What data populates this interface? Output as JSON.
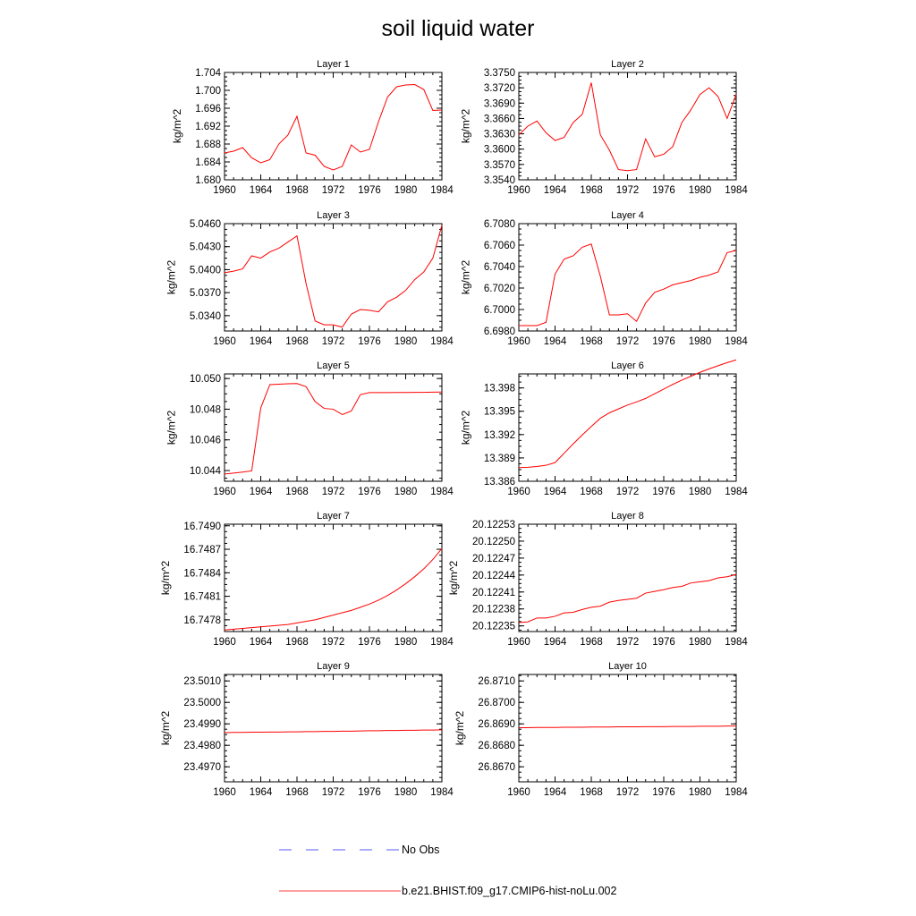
{
  "title": "soil liquid water",
  "colors": {
    "model_line": "#ff0000",
    "obs_line": "#5a5aff",
    "axis": "#000000"
  },
  "legend": {
    "obs_label": "No Obs",
    "model_label": "b.e21.BHIST.f09_g17.CMIP6-hist-noLu.002"
  },
  "chart_data": [
    {
      "type": "line",
      "title": "Layer 1",
      "ylabel": "kg/m^2",
      "x": [
        1960,
        1961,
        1962,
        1963,
        1964,
        1965,
        1966,
        1967,
        1968,
        1969,
        1970,
        1971,
        1972,
        1973,
        1974,
        1975,
        1976,
        1977,
        1978,
        1979,
        1980,
        1981,
        1982,
        1983,
        1984
      ],
      "xticks": [
        "1960",
        "1964",
        "1968",
        "1972",
        "1976",
        "1980",
        "1984"
      ],
      "ylim": [
        1.68,
        1.704
      ],
      "yticks": [
        "1.680",
        "1.684",
        "1.688",
        "1.692",
        "1.696",
        "1.700",
        "1.704"
      ],
      "series": [
        {
          "name": "b.e21.BHIST.f09_g17.CMIP6-hist-noLu.002",
          "values": [
            1.686,
            1.6864,
            1.6872,
            1.6849,
            1.6838,
            1.6845,
            1.688,
            1.69,
            1.6942,
            1.686,
            1.6855,
            1.683,
            1.6822,
            1.683,
            1.6878,
            1.6862,
            1.6868,
            1.693,
            1.6985,
            1.7008,
            1.7012,
            1.7013,
            1.7002,
            1.6955,
            1.6956
          ]
        }
      ]
    },
    {
      "type": "line",
      "title": "Layer 2",
      "ylabel": "kg/m^2",
      "x": [
        1960,
        1961,
        1962,
        1963,
        1964,
        1965,
        1966,
        1967,
        1968,
        1969,
        1970,
        1971,
        1972,
        1973,
        1974,
        1975,
        1976,
        1977,
        1978,
        1979,
        1980,
        1981,
        1982,
        1983,
        1984
      ],
      "xticks": [
        "1960",
        "1964",
        "1968",
        "1972",
        "1976",
        "1980",
        "1984"
      ],
      "ylim": [
        3.354,
        3.375
      ],
      "yticks": [
        "3.3540",
        "3.3570",
        "3.3600",
        "3.3630",
        "3.3660",
        "3.3690",
        "3.3720",
        "3.3750"
      ],
      "series": [
        {
          "name": "b.e21.BHIST.f09_g17.CMIP6-hist-noLu.002",
          "values": [
            3.3628,
            3.3645,
            3.3655,
            3.3632,
            3.3617,
            3.3623,
            3.3652,
            3.3668,
            3.373,
            3.3628,
            3.3598,
            3.356,
            3.3558,
            3.356,
            3.362,
            3.3585,
            3.359,
            3.3605,
            3.3652,
            3.3677,
            3.3707,
            3.372,
            3.3703,
            3.366,
            3.3707
          ]
        }
      ]
    },
    {
      "type": "line",
      "title": "Layer 3",
      "ylabel": "kg/m^2",
      "x": [
        1960,
        1961,
        1962,
        1963,
        1964,
        1965,
        1966,
        1967,
        1968,
        1969,
        1970,
        1971,
        1972,
        1973,
        1974,
        1975,
        1976,
        1977,
        1978,
        1979,
        1980,
        1981,
        1982,
        1983,
        1984
      ],
      "xticks": [
        "1960",
        "1964",
        "1968",
        "1972",
        "1976",
        "1980",
        "1984"
      ],
      "ylim": [
        5.032,
        5.046
      ],
      "yticks": [
        "5.0340",
        "5.0370",
        "5.0400",
        "5.0430",
        "5.0460"
      ],
      "series": [
        {
          "name": "b.e21.BHIST.f09_g17.CMIP6-hist-noLu.002",
          "values": [
            5.0396,
            5.0398,
            5.0401,
            5.0418,
            5.0415,
            5.0423,
            5.0428,
            5.0436,
            5.0444,
            5.0382,
            5.0333,
            5.0328,
            5.0328,
            5.0325,
            5.0342,
            5.0348,
            5.0347,
            5.0345,
            5.0358,
            5.0364,
            5.0373,
            5.0387,
            5.0397,
            5.0415,
            5.0458
          ]
        }
      ]
    },
    {
      "type": "line",
      "title": "Layer 4",
      "ylabel": "kg/m^2",
      "x": [
        1960,
        1961,
        1962,
        1963,
        1964,
        1965,
        1966,
        1967,
        1968,
        1969,
        1970,
        1971,
        1972,
        1973,
        1974,
        1975,
        1976,
        1977,
        1978,
        1979,
        1980,
        1981,
        1982,
        1983,
        1984
      ],
      "xticks": [
        "1960",
        "1964",
        "1968",
        "1972",
        "1976",
        "1980",
        "1984"
      ],
      "ylim": [
        6.698,
        6.708
      ],
      "yticks": [
        "6.6980",
        "6.7000",
        "6.7020",
        "6.7040",
        "6.7060",
        "6.7080"
      ],
      "series": [
        {
          "name": "b.e21.BHIST.f09_g17.CMIP6-hist-noLu.002",
          "values": [
            6.6985,
            6.6985,
            6.6985,
            6.6988,
            6.7033,
            6.7047,
            6.705,
            6.7058,
            6.7061,
            6.7031,
            6.6995,
            6.6995,
            6.6996,
            6.6989,
            6.7006,
            6.7016,
            6.7019,
            6.7023,
            6.7025,
            6.7027,
            6.703,
            6.7032,
            6.7035,
            6.7053,
            6.7055
          ]
        }
      ]
    },
    {
      "type": "line",
      "title": "Layer 5",
      "ylabel": "kg/m^2",
      "x": [
        1960,
        1961,
        1962,
        1963,
        1964,
        1965,
        1966,
        1967,
        1968,
        1969,
        1970,
        1971,
        1972,
        1973,
        1974,
        1975,
        1976,
        1977,
        1978,
        1979,
        1980,
        1981,
        1982,
        1983,
        1984
      ],
      "xticks": [
        "1960",
        "1964",
        "1968",
        "1972",
        "1976",
        "1980",
        "1984"
      ],
      "ylim": [
        10.0433,
        10.0503
      ],
      "yticks": [
        "10.044",
        "10.046",
        "10.048",
        "10.050"
      ],
      "series": [
        {
          "name": "b.e21.BHIST.f09_g17.CMIP6-hist-noLu.002",
          "values": [
            10.04377,
            10.04383,
            10.0439,
            10.04398,
            10.04808,
            10.0496,
            10.04963,
            10.04966,
            10.04967,
            10.04947,
            10.0485,
            10.04805,
            10.048,
            10.04765,
            10.04788,
            10.04895,
            10.04908,
            10.04908,
            10.04908,
            10.04909,
            10.04909,
            10.0491,
            10.0491,
            10.04911,
            10.04912
          ]
        }
      ]
    },
    {
      "type": "line",
      "title": "Layer 6",
      "ylabel": "kg/m^2",
      "x": [
        1960,
        1961,
        1962,
        1963,
        1964,
        1965,
        1966,
        1967,
        1968,
        1969,
        1970,
        1971,
        1972,
        1973,
        1974,
        1975,
        1976,
        1977,
        1978,
        1979,
        1980,
        1981,
        1982,
        1983,
        1984
      ],
      "xticks": [
        "1960",
        "1964",
        "1968",
        "1972",
        "1976",
        "1980",
        "1984"
      ],
      "ylim": [
        13.386,
        13.3998
      ],
      "yticks": [
        "13.386",
        "13.389",
        "13.392",
        "13.395",
        "13.398"
      ],
      "series": [
        {
          "name": "b.e21.BHIST.f09_g17.CMIP6-hist-noLu.002",
          "values": [
            13.38775,
            13.3878,
            13.3879,
            13.38805,
            13.3884,
            13.3896,
            13.3908,
            13.39195,
            13.39305,
            13.3941,
            13.3948,
            13.3953,
            13.3958,
            13.3962,
            13.39665,
            13.39725,
            13.39785,
            13.39845,
            13.399,
            13.3995,
            13.4,
            13.40045,
            13.40085,
            13.40125,
            13.4016
          ]
        }
      ]
    },
    {
      "type": "line",
      "title": "Layer 7",
      "ylabel": "kg/m^2",
      "x": [
        1960,
        1961,
        1962,
        1963,
        1964,
        1965,
        1966,
        1967,
        1968,
        1969,
        1970,
        1971,
        1972,
        1973,
        1974,
        1975,
        1976,
        1977,
        1978,
        1979,
        1980,
        1981,
        1982,
        1983,
        1984
      ],
      "xticks": [
        "1960",
        "1964",
        "1968",
        "1972",
        "1976",
        "1980",
        "1984"
      ],
      "ylim": [
        16.74765,
        16.74902
      ],
      "yticks": [
        "16.7478",
        "16.7481",
        "16.7484",
        "16.7487",
        "16.7490"
      ],
      "series": [
        {
          "name": "b.e21.BHIST.f09_g17.CMIP6-hist-noLu.002",
          "values": [
            16.74767,
            16.74768,
            16.74769,
            16.7477,
            16.74771,
            16.74772,
            16.74773,
            16.74774,
            16.74776,
            16.74778,
            16.7478,
            16.74783,
            16.74786,
            16.74789,
            16.74792,
            16.74796,
            16.748,
            16.74805,
            16.74811,
            16.74818,
            16.74826,
            16.74835,
            16.74845,
            16.74857,
            16.74871
          ]
        }
      ]
    },
    {
      "type": "line",
      "title": "Layer 8",
      "ylabel": "kg/m^2",
      "x": [
        1960,
        1961,
        1962,
        1963,
        1964,
        1965,
        1966,
        1967,
        1968,
        1969,
        1970,
        1971,
        1972,
        1973,
        1974,
        1975,
        1976,
        1977,
        1978,
        1979,
        1980,
        1981,
        1982,
        1983,
        1984
      ],
      "xticks": [
        "1960",
        "1964",
        "1968",
        "1972",
        "1976",
        "1980",
        "1984"
      ],
      "ylim": [
        20.12234,
        20.12253
      ],
      "yticks": [
        "20.12235",
        "20.12238",
        "20.12241",
        "20.12244",
        "20.12247",
        "20.12250",
        "20.12253"
      ],
      "series": [
        {
          "name": "b.e21.BHIST.f09_g17.CMIP6-hist-noLu.002",
          "values": [
            20.122356,
            20.122357,
            20.122364,
            20.122364,
            20.122367,
            20.122373,
            20.122374,
            20.122379,
            20.122383,
            20.122385,
            20.122392,
            20.122395,
            20.122397,
            20.122399,
            20.122408,
            20.122411,
            20.122414,
            20.122418,
            20.12242,
            20.122426,
            20.122428,
            20.12243,
            20.122435,
            20.122437,
            20.122441
          ]
        }
      ]
    },
    {
      "type": "line",
      "title": "Layer 9",
      "ylabel": "kg/m^2",
      "x": [
        1960,
        1961,
        1962,
        1963,
        1964,
        1965,
        1966,
        1967,
        1968,
        1969,
        1970,
        1971,
        1972,
        1973,
        1974,
        1975,
        1976,
        1977,
        1978,
        1979,
        1980,
        1981,
        1982,
        1983,
        1984
      ],
      "xticks": [
        "1960",
        "1964",
        "1968",
        "1972",
        "1976",
        "1980",
        "1984"
      ],
      "ylim": [
        23.4963,
        23.5013
      ],
      "yticks": [
        "23.4970",
        "23.4980",
        "23.4990",
        "23.5000",
        "23.5010"
      ],
      "series": [
        {
          "name": "b.e21.BHIST.f09_g17.CMIP6-hist-noLu.002",
          "values": [
            23.49859,
            23.4986,
            23.4986,
            23.49861,
            23.49861,
            23.49862,
            23.49862,
            23.49863,
            23.49863,
            23.49864,
            23.49864,
            23.49865,
            23.49865,
            23.49866,
            23.49866,
            23.49867,
            23.49868,
            23.49868,
            23.49869,
            23.49869,
            23.4987,
            23.4987,
            23.49871,
            23.49871,
            23.49872
          ]
        }
      ]
    },
    {
      "type": "line",
      "title": "Layer 10",
      "ylabel": "kg/m^2",
      "x": [
        1960,
        1961,
        1962,
        1963,
        1964,
        1965,
        1966,
        1967,
        1968,
        1969,
        1970,
        1971,
        1972,
        1973,
        1974,
        1975,
        1976,
        1977,
        1978,
        1979,
        1980,
        1981,
        1982,
        1983,
        1984
      ],
      "xticks": [
        "1960",
        "1964",
        "1968",
        "1972",
        "1976",
        "1980",
        "1984"
      ],
      "ylim": [
        26.8663,
        26.8713
      ],
      "yticks": [
        "26.8670",
        "26.8680",
        "26.8690",
        "26.8700",
        "26.8710"
      ],
      "series": [
        {
          "name": "b.e21.BHIST.f09_g17.CMIP6-hist-noLu.002",
          "values": [
            26.86882,
            26.86882,
            26.86883,
            26.86883,
            26.86883,
            26.86884,
            26.86884,
            26.86884,
            26.86885,
            26.86885,
            26.86885,
            26.86886,
            26.86886,
            26.86886,
            26.86887,
            26.86887,
            26.86887,
            26.86888,
            26.86888,
            26.86888,
            26.86889,
            26.86889,
            26.86889,
            26.8689,
            26.8689
          ]
        }
      ]
    }
  ]
}
